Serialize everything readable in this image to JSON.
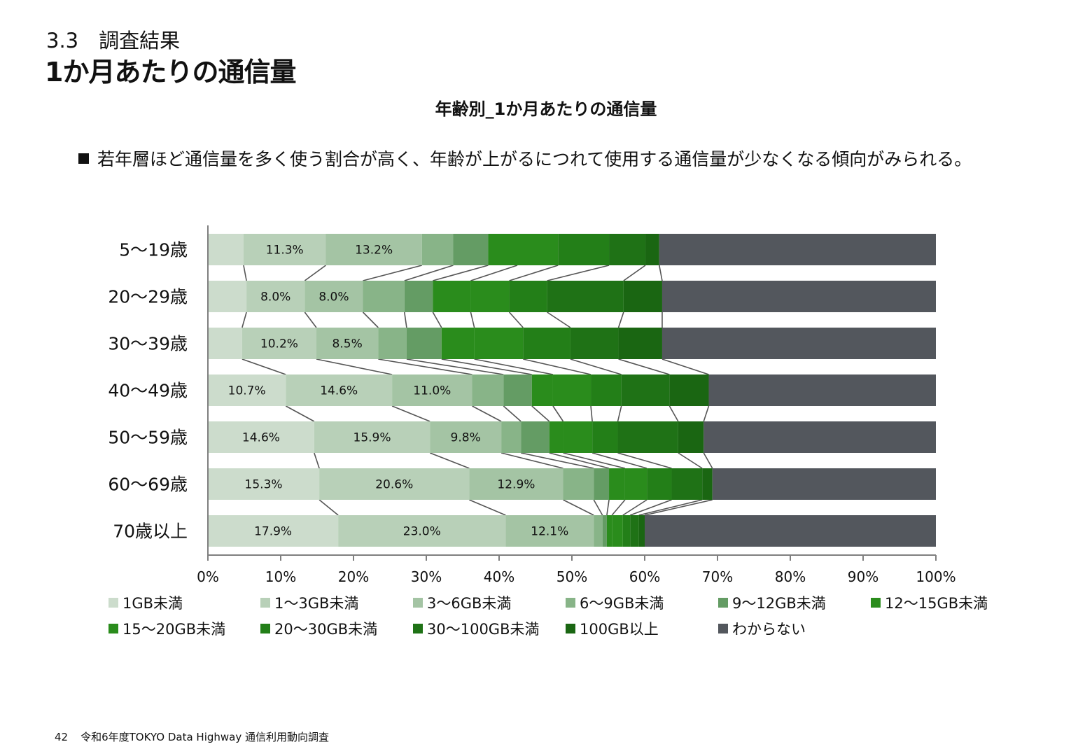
{
  "header": {
    "section_label": "3.3　調査結果",
    "page_title": "1か月あたりの通信量"
  },
  "summary_text": "若年層ほど通信量を多く使う割合が高く、年齢が上がるにつれて使用する通信量が少なくなる傾向がみられる。",
  "footer": {
    "page_number": "42",
    "report_name": "令和6年度TOKYO Data Highway 通信利用動向調査"
  },
  "chart_data": {
    "type": "bar",
    "orientation": "horizontal",
    "stacked": true,
    "percent_stacked": true,
    "title": "年齢別_1か月あたりの通信量",
    "categories": [
      "5～19歳",
      "20～29歳",
      "30～39歳",
      "40～49歳",
      "50～59歳",
      "60～69歳",
      "70歳以上"
    ],
    "x_ticks": [
      "0%",
      "10%",
      "20%",
      "30%",
      "40%",
      "50%",
      "60%",
      "70%",
      "80%",
      "90%",
      "100%"
    ],
    "xlim": [
      0,
      100
    ],
    "grid": false,
    "legend_position": "bottom",
    "series_lines": true,
    "series": [
      {
        "name": "1GB未満",
        "color": "#ccdccc",
        "values": [
          4.9,
          5.3,
          4.7,
          10.7,
          14.6,
          15.3,
          17.9
        ],
        "labels": [
          "",
          "",
          "",
          "10.7%",
          "14.6%",
          "15.3%",
          "17.9%"
        ]
      },
      {
        "name": "1～3GB未満",
        "color": "#b8d0b8",
        "values": [
          11.3,
          8.0,
          10.2,
          14.6,
          15.9,
          20.6,
          23.0
        ],
        "labels": [
          "11.3%",
          "8.0%",
          "10.2%",
          "14.6%",
          "15.9%",
          "20.6%",
          "23.0%"
        ]
      },
      {
        "name": "3～6GB未満",
        "color": "#a4c4a4",
        "values": [
          13.2,
          8.0,
          8.5,
          11.0,
          9.8,
          12.9,
          12.1
        ],
        "labels": [
          "13.2%",
          "8.0%",
          "8.5%",
          "11.0%",
          "9.8%",
          "12.9%",
          "12.1%"
        ]
      },
      {
        "name": "6～9GB未満",
        "color": "#88b488",
        "values": [
          4.3,
          5.7,
          3.9,
          4.3,
          2.7,
          4.2,
          1.2
        ],
        "labels": [
          "",
          "",
          "",
          "",
          "",
          "",
          ""
        ]
      },
      {
        "name": "9～12GB未満",
        "color": "#649c64",
        "values": [
          4.8,
          3.9,
          4.8,
          3.9,
          3.9,
          2.1,
          0.6
        ],
        "labels": [
          "",
          "",
          "",
          "",
          "",
          "",
          ""
        ]
      },
      {
        "name": "12～15GB未満",
        "color": "#2a8c1c",
        "values": [
          4.0,
          5.2,
          4.5,
          2.9,
          1.9,
          2.2,
          0.7
        ],
        "labels": [
          "",
          "",
          "",
          "",
          "",
          "",
          ""
        ]
      },
      {
        "name": "15～20GB未満",
        "color": "#2a8c1c",
        "values": [
          5.6,
          5.3,
          6.7,
          5.2,
          4.0,
          3.0,
          1.5
        ],
        "labels": [
          "",
          "",
          "",
          "",
          "",
          "",
          ""
        ]
      },
      {
        "name": "20～30GB未満",
        "color": "#237f18",
        "values": [
          7.0,
          5.2,
          6.5,
          4.2,
          3.5,
          3.4,
          1.0
        ],
        "labels": [
          "",
          "",
          "",
          "",
          "",
          "",
          ""
        ]
      },
      {
        "name": "30～100GB未満",
        "color": "#1f7216",
        "values": [
          5.0,
          10.5,
          6.6,
          6.6,
          8.3,
          4.2,
          1.2
        ],
        "labels": [
          "",
          "",
          "",
          "",
          "",
          "",
          ""
        ]
      },
      {
        "name": "100GB以上",
        "color": "#1a6612",
        "values": [
          1.9,
          5.3,
          6.0,
          5.4,
          3.5,
          1.4,
          0.8
        ],
        "labels": [
          "",
          "",
          "",
          "",
          "",
          "",
          ""
        ]
      },
      {
        "name": "わからない",
        "color": "#53575d",
        "values": [
          38.0,
          37.6,
          37.6,
          31.2,
          31.9,
          30.7,
          40.0
        ],
        "labels": [
          "",
          "",
          "",
          "",
          "",
          "",
          ""
        ]
      }
    ]
  }
}
